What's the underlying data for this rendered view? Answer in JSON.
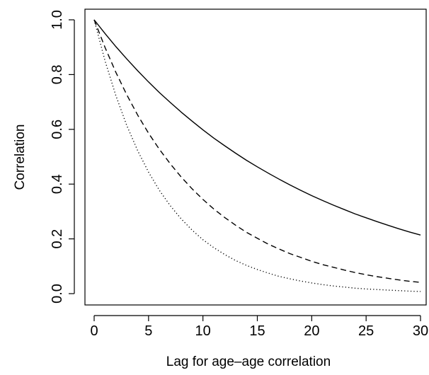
{
  "chart_data": {
    "type": "line",
    "title": "",
    "xlabel": "Lag for age–age correlation",
    "ylabel": "Correlation",
    "xlim": [
      0,
      30
    ],
    "ylim": [
      0,
      1
    ],
    "x_ticks": [
      0,
      5,
      10,
      15,
      20,
      25,
      30
    ],
    "y_ticks": [
      0.0,
      0.2,
      0.4,
      0.6,
      0.8,
      1.0
    ],
    "x_tick_labels": [
      "0",
      "5",
      "10",
      "15",
      "20",
      "25",
      "30"
    ],
    "y_tick_labels": [
      "0.0",
      "0.2",
      "0.4",
      "0.6",
      "0.8",
      "1.0"
    ],
    "grid": false,
    "legend": "none",
    "x": [
      0,
      1,
      2,
      3,
      4,
      5,
      6,
      7,
      8,
      9,
      10,
      11,
      12,
      13,
      14,
      15,
      16,
      17,
      18,
      19,
      20,
      21,
      22,
      23,
      24,
      25,
      26,
      27,
      28,
      29,
      30
    ],
    "series": [
      {
        "style": "solid",
        "color": "#000000",
        "values": [
          1.0,
          0.95,
          0.902,
          0.857,
          0.814,
          0.773,
          0.734,
          0.698,
          0.663,
          0.63,
          0.598,
          0.568,
          0.54,
          0.513,
          0.487,
          0.463,
          0.44,
          0.418,
          0.397,
          0.377,
          0.358,
          0.34,
          0.323,
          0.307,
          0.291,
          0.277,
          0.263,
          0.25,
          0.237,
          0.225,
          0.214
        ]
      },
      {
        "style": "dashed",
        "color": "#000000",
        "values": [
          1.0,
          0.899,
          0.808,
          0.726,
          0.652,
          0.586,
          0.527,
          0.474,
          0.426,
          0.383,
          0.344,
          0.309,
          0.278,
          0.25,
          0.224,
          0.202,
          0.181,
          0.163,
          0.146,
          0.132,
          0.118,
          0.106,
          0.096,
          0.086,
          0.077,
          0.069,
          0.062,
          0.056,
          0.05,
          0.045,
          0.041
        ]
      },
      {
        "style": "dotted",
        "color": "#000000",
        "values": [
          1.0,
          0.85,
          0.723,
          0.614,
          0.522,
          0.444,
          0.377,
          0.321,
          0.273,
          0.232,
          0.197,
          0.168,
          0.143,
          0.121,
          0.103,
          0.088,
          0.075,
          0.063,
          0.054,
          0.046,
          0.039,
          0.033,
          0.028,
          0.024,
          0.02,
          0.017,
          0.015,
          0.013,
          0.011,
          0.009,
          0.008
        ]
      }
    ]
  }
}
